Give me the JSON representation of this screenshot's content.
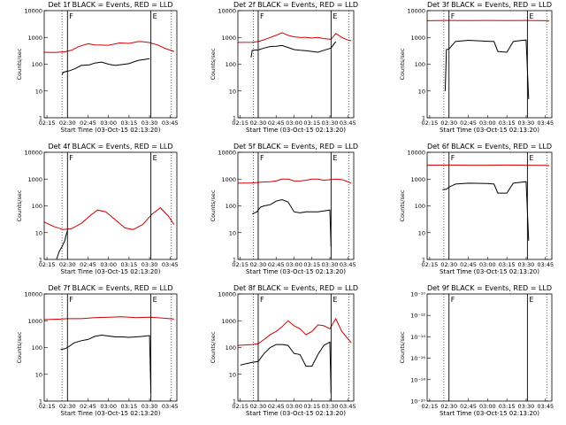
{
  "chart_data": [
    {
      "type": "line",
      "detector": "Det 1f",
      "title": "Det 1f BLACK = Events, RED = LLD",
      "xlabel": "Start Time (03-Oct-15 02:13:20)",
      "ylabel": "Counts/sec",
      "yscale": "log",
      "ylim": [
        1,
        10000
      ],
      "xticks": [
        "02:15",
        "02:30",
        "02:45",
        "03:00",
        "03:15",
        "03:30",
        "03:45"
      ],
      "yticks": [
        "1",
        "10",
        "100",
        "1000",
        "10000"
      ],
      "markers": {
        "F": "02:30",
        "E": "03:31"
      },
      "series": [
        {
          "name": "LLD",
          "color": "#d00000",
          "x": [
            "02:13",
            "02:20",
            "02:28",
            "02:33",
            "02:38",
            "02:45",
            "02:50",
            "03:00",
            "03:08",
            "03:15",
            "03:22",
            "03:26",
            "03:30",
            "03:36",
            "03:42",
            "03:48"
          ],
          "y": [
            280,
            275,
            290,
            330,
            450,
            580,
            520,
            510,
            620,
            600,
            700,
            680,
            640,
            520,
            380,
            300
          ]
        },
        {
          "name": "Events",
          "color": "#000000",
          "x": [
            "02:26",
            "02:27",
            "02:30",
            "02:32",
            "02:36",
            "02:40",
            "02:46",
            "02:50",
            "02:55",
            "03:00",
            "03:05",
            "03:08",
            "03:15",
            "03:18",
            "03:22",
            "03:26",
            "03:30"
          ],
          "y": [
            40,
            50,
            55,
            58,
            70,
            90,
            95,
            110,
            120,
            100,
            90,
            95,
            105,
            120,
            140,
            150,
            160
          ]
        }
      ]
    },
    {
      "type": "line",
      "detector": "Det 2f",
      "title": "Det 2f BLACK = Events, RED = LLD",
      "xlabel": "Start Time (03-Oct-15 02:13:20)",
      "ylabel": "Counts/sec",
      "yscale": "log",
      "ylim": [
        1,
        10000
      ],
      "xticks": [
        "02:15",
        "02:30",
        "02:45",
        "03:00",
        "03:15",
        "03:30",
        "03:45"
      ],
      "yticks": [
        "1",
        "10",
        "100",
        "1000",
        "10000"
      ],
      "markers": {
        "F": "02:30",
        "E": "03:31"
      },
      "series": [
        {
          "name": "LLD",
          "color": "#d00000",
          "x": [
            "02:13",
            "02:25",
            "02:30",
            "02:35",
            "02:40",
            "02:45",
            "02:50",
            "02:55",
            "03:00",
            "03:05",
            "03:10",
            "03:15",
            "03:20",
            "03:25",
            "03:31",
            "03:35",
            "03:40",
            "03:45",
            "03:48"
          ],
          "y": [
            650,
            660,
            700,
            820,
            1000,
            1200,
            1500,
            1200,
            1050,
            1000,
            1000,
            950,
            1000,
            900,
            850,
            1400,
            1000,
            800,
            750
          ]
        },
        {
          "name": "Events",
          "color": "#000000",
          "x": [
            "02:24",
            "02:25",
            "02:30",
            "02:35",
            "02:40",
            "02:45",
            "02:50",
            "02:55",
            "03:00",
            "03:05",
            "03:10",
            "03:15",
            "03:20",
            "03:25",
            "03:31",
            "03:35"
          ],
          "y": [
            180,
            330,
            340,
            400,
            460,
            470,
            500,
            420,
            350,
            330,
            320,
            300,
            280,
            330,
            400,
            700
          ]
        }
      ]
    },
    {
      "type": "line",
      "detector": "Det 3f",
      "title": "Det 3f BLACK = Events, RED = LLD",
      "xlabel": "Start Time (03-Oct-15 02:13:20)",
      "ylabel": "Counts/sec",
      "yscale": "log",
      "ylim": [
        1,
        10000
      ],
      "xticks": [
        "02:15",
        "02:30",
        "02:45",
        "03:00",
        "03:15",
        "03:30",
        "03:45"
      ],
      "yticks": [
        "1",
        "10",
        "100",
        "1000",
        "10000"
      ],
      "markers": {
        "F": "02:30",
        "E": "03:31"
      },
      "series": [
        {
          "name": "LLD",
          "color": "#d00000",
          "x": [
            "02:13",
            "02:30",
            "02:45",
            "03:00",
            "03:15",
            "03:30",
            "03:45",
            "03:48"
          ],
          "y": [
            4200,
            4300,
            4250,
            4300,
            4250,
            4300,
            4200,
            4100
          ]
        },
        {
          "name": "Events",
          "color": "#000000",
          "x": [
            "02:27",
            "02:28",
            "02:30",
            "02:35",
            "02:45",
            "03:00",
            "03:05",
            "03:08",
            "03:15",
            "03:20",
            "03:25",
            "03:30",
            "03:32"
          ],
          "y": [
            10,
            350,
            370,
            700,
            780,
            720,
            700,
            300,
            280,
            700,
            760,
            800,
            5
          ]
        }
      ]
    },
    {
      "type": "line",
      "detector": "Det 4f",
      "title": "Det 4f BLACK = Events, RED = LLD",
      "xlabel": "Start Time (03-Oct-15 02:13:20)",
      "ylabel": "Counts/sec",
      "yscale": "log",
      "ylim": [
        1,
        10000
      ],
      "xticks": [
        "02:15",
        "02:30",
        "02:45",
        "03:00",
        "03:15",
        "03:30",
        "03:45"
      ],
      "yticks": [
        "1",
        "10",
        "100",
        "1000",
        "10000"
      ],
      "markers": {
        "F": "02:30",
        "E": "03:31"
      },
      "series": [
        {
          "name": "LLD",
          "color": "#d00000",
          "x": [
            "02:13",
            "02:20",
            "02:27",
            "02:33",
            "02:40",
            "02:47",
            "02:52",
            "02:58",
            "03:05",
            "03:12",
            "03:18",
            "03:25",
            "03:32",
            "03:38",
            "03:44",
            "03:48"
          ],
          "y": [
            25,
            17,
            13,
            14,
            22,
            45,
            70,
            60,
            30,
            15,
            13,
            20,
            50,
            85,
            40,
            20
          ]
        },
        {
          "name": "Events",
          "color": "#000000",
          "x": [
            "02:22",
            "02:24",
            "02:26",
            "02:28",
            "02:29",
            "02:30"
          ],
          "y": [
            1,
            2,
            3,
            5,
            8,
            12
          ]
        }
      ]
    },
    {
      "type": "line",
      "detector": "Det 5f",
      "title": "Det 5f BLACK = Events, RED = LLD",
      "xlabel": "Start Time (03-Oct-15 02:13:20)",
      "ylabel": "Counts/sec",
      "yscale": "log",
      "ylim": [
        1,
        10000
      ],
      "xticks": [
        "02:15",
        "02:30",
        "02:45",
        "03:00",
        "03:15",
        "03:30",
        "03:45"
      ],
      "yticks": [
        "1",
        "10",
        "100",
        "1000",
        "10000"
      ],
      "markers": {
        "F": "02:30",
        "E": "03:31"
      },
      "series": [
        {
          "name": "LLD",
          "color": "#d00000",
          "x": [
            "02:13",
            "02:25",
            "02:30",
            "02:35",
            "02:40",
            "02:45",
            "02:50",
            "02:55",
            "03:00",
            "03:05",
            "03:10",
            "03:15",
            "03:20",
            "03:25",
            "03:30",
            "03:35",
            "03:40",
            "03:45",
            "03:48"
          ],
          "y": [
            700,
            720,
            750,
            780,
            800,
            850,
            1000,
            1000,
            850,
            850,
            900,
            1000,
            1000,
            900,
            950,
            1000,
            950,
            800,
            700
          ]
        },
        {
          "name": "Events",
          "color": "#000000",
          "x": [
            "02:25",
            "02:27",
            "02:29",
            "02:30",
            "02:32",
            "02:35",
            "02:40",
            "02:45",
            "02:50",
            "02:55",
            "03:00",
            "03:05",
            "03:10",
            "03:15",
            "03:20",
            "03:25",
            "03:30",
            "03:31"
          ],
          "y": [
            50,
            55,
            60,
            70,
            90,
            100,
            110,
            150,
            170,
            140,
            60,
            55,
            60,
            60,
            60,
            65,
            70,
            3
          ]
        }
      ]
    },
    {
      "type": "line",
      "detector": "Det 6f",
      "title": "Det 6f BLACK = Events, RED = LLD",
      "xlabel": "Start Time (03-Oct-15 02:13:20)",
      "ylabel": "Counts/sec",
      "yscale": "log",
      "ylim": [
        1,
        10000
      ],
      "xticks": [
        "02:15",
        "02:30",
        "02:45",
        "03:00",
        "03:15",
        "03:30",
        "03:45"
      ],
      "yticks": [
        "1",
        "10",
        "100",
        "1000",
        "10000"
      ],
      "markers": {
        "F": "02:30",
        "E": "03:31"
      },
      "series": [
        {
          "name": "LLD",
          "color": "#d00000",
          "x": [
            "02:13",
            "02:30",
            "02:45",
            "03:00",
            "03:15",
            "03:30",
            "03:45",
            "03:48"
          ],
          "y": [
            3300,
            3350,
            3300,
            3300,
            3350,
            3300,
            3250,
            3200
          ]
        },
        {
          "name": "Events",
          "color": "#000000",
          "x": [
            "02:25",
            "02:28",
            "02:30",
            "02:35",
            "02:45",
            "03:00",
            "03:05",
            "03:08",
            "03:15",
            "03:20",
            "03:25",
            "03:30",
            "03:32"
          ],
          "y": [
            400,
            420,
            500,
            650,
            700,
            680,
            650,
            300,
            300,
            700,
            750,
            800,
            5
          ]
        }
      ]
    },
    {
      "type": "line",
      "detector": "Det 7f",
      "title": "Det 7f BLACK = Events, RED = LLD",
      "xlabel": "Start Time (03-Oct-15 02:13:20)",
      "ylabel": "Counts/sec",
      "yscale": "log",
      "ylim": [
        1,
        10000
      ],
      "xticks": [
        "02:15",
        "02:30",
        "02:45",
        "03:00",
        "03:15",
        "03:30",
        "03:45"
      ],
      "yticks": [
        "1",
        "10",
        "100",
        "1000",
        "10000"
      ],
      "markers": {
        "F": "02:30",
        "E": "03:31"
      },
      "series": [
        {
          "name": "LLD",
          "color": "#d00000",
          "x": [
            "02:13",
            "02:25",
            "02:30",
            "02:40",
            "02:50",
            "03:00",
            "03:10",
            "03:20",
            "03:30",
            "03:40",
            "03:48"
          ],
          "y": [
            1100,
            1150,
            1200,
            1200,
            1300,
            1350,
            1400,
            1300,
            1350,
            1250,
            1150
          ]
        },
        {
          "name": "Events",
          "color": "#000000",
          "x": [
            "02:25",
            "02:28",
            "02:30",
            "02:35",
            "02:40",
            "02:45",
            "02:50",
            "02:55",
            "03:00",
            "03:05",
            "03:10",
            "03:15",
            "03:20",
            "03:25",
            "03:30",
            "03:31"
          ],
          "y": [
            85,
            90,
            100,
            150,
            180,
            200,
            260,
            290,
            270,
            250,
            250,
            240,
            250,
            260,
            280,
            2
          ]
        }
      ]
    },
    {
      "type": "line",
      "detector": "Det 8f",
      "title": "Det 8f BLACK = Events, RED = LLD",
      "xlabel": "Start Time (03-Oct-15 02:13:20)",
      "ylabel": "Counts/sec",
      "yscale": "log",
      "ylim": [
        1,
        10000
      ],
      "xticks": [
        "02:15",
        "02:30",
        "02:45",
        "03:00",
        "03:15",
        "03:30",
        "03:45"
      ],
      "yticks": [
        "1",
        "10",
        "100",
        "1000",
        "10000"
      ],
      "markers": {
        "F": "02:30",
        "E": "03:31"
      },
      "series": [
        {
          "name": "LLD",
          "color": "#d00000",
          "x": [
            "02:13",
            "02:25",
            "02:30",
            "02:35",
            "02:40",
            "02:45",
            "02:50",
            "02:55",
            "03:00",
            "03:05",
            "03:10",
            "03:15",
            "03:20",
            "03:25",
            "03:30",
            "03:35",
            "03:40",
            "03:48"
          ],
          "y": [
            120,
            130,
            140,
            200,
            300,
            400,
            600,
            1000,
            650,
            500,
            300,
            400,
            700,
            650,
            500,
            1200,
            400,
            150
          ]
        },
        {
          "name": "Events",
          "color": "#000000",
          "x": [
            "02:15",
            "02:20",
            "02:25",
            "02:30",
            "02:35",
            "02:40",
            "02:45",
            "02:50",
            "02:55",
            "03:00",
            "03:05",
            "03:10",
            "03:15",
            "03:20",
            "03:25",
            "03:30",
            "03:31"
          ],
          "y": [
            22,
            25,
            28,
            30,
            60,
            100,
            130,
            130,
            120,
            60,
            55,
            20,
            20,
            55,
            120,
            160,
            2
          ]
        }
      ]
    },
    {
      "type": "line",
      "detector": "Det 9f",
      "title": "Det 9f BLACK = Events, RED = LLD",
      "xlabel": "Start Time (03-Oct-15 02:13:20)",
      "ylabel": "Counts/sec",
      "yscale": "log",
      "ylim": [
        1e-20,
        1e-10
      ],
      "xticks": [
        "02:15",
        "02:30",
        "02:45",
        "03:00",
        "03:15",
        "03:30",
        "03:45"
      ],
      "yticks": [
        "10⁻²⁰",
        "10⁻¹⁸",
        "10⁻¹⁶",
        "10⁻¹⁴",
        "10⁻¹²",
        "10⁻¹⁰"
      ],
      "markers": {
        "F": "02:30",
        "E": "03:31"
      },
      "series": []
    }
  ]
}
